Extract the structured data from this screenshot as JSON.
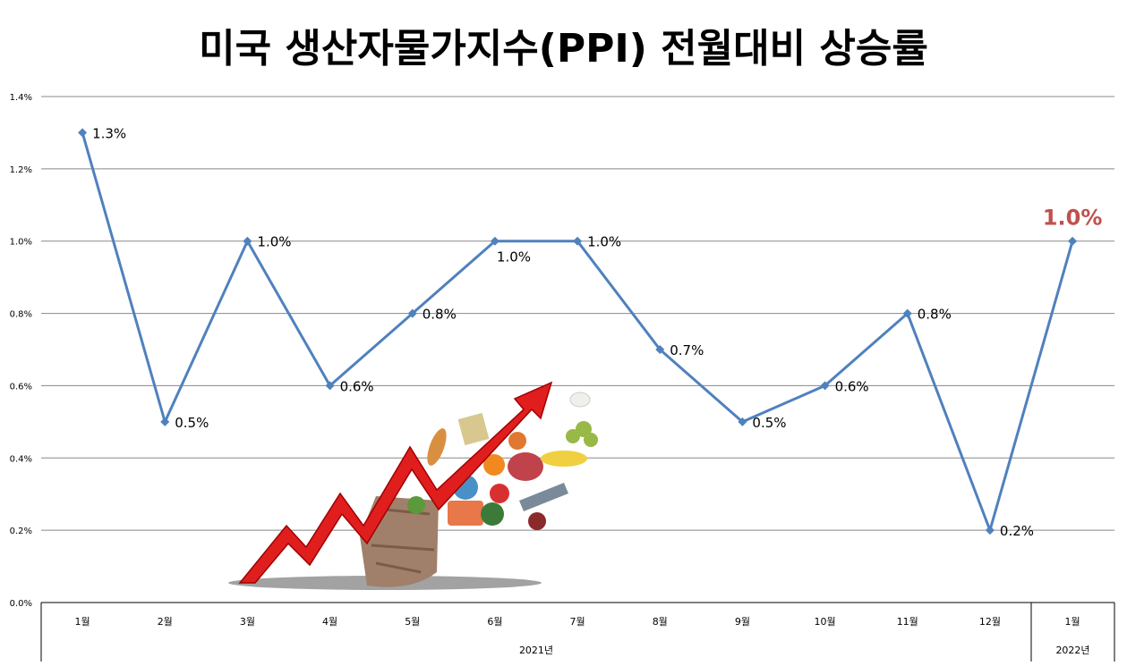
{
  "chart_data": {
    "type": "line",
    "title": "미국 생산자물가지수(PPI) 전월대비 상승률",
    "xlabel": "",
    "ylabel": "",
    "ylim": [
      0,
      1.4
    ],
    "y_ticks": [
      "0.0%",
      "0.2%",
      "0.4%",
      "0.6%",
      "0.8%",
      "1.0%",
      "1.2%",
      "1.4%"
    ],
    "y_tick_values": [
      0,
      0.2,
      0.4,
      0.6,
      0.8,
      1.0,
      1.2,
      1.4
    ],
    "grid": true,
    "legend": "none",
    "categories": [
      "1월",
      "2월",
      "3월",
      "4월",
      "5월",
      "6월",
      "7월",
      "8월",
      "9월",
      "10월",
      "11월",
      "12월",
      "1월"
    ],
    "year_groups": [
      {
        "label": "2021년",
        "start": 0,
        "end": 11
      },
      {
        "label": "2022년",
        "start": 12,
        "end": 12
      }
    ],
    "series": [
      {
        "values": [
          1.3,
          0.5,
          1.0,
          0.6,
          0.8,
          1.0,
          1.0,
          0.7,
          0.5,
          0.6,
          0.8,
          0.2,
          1.0
        ],
        "labels": [
          "1.3%",
          "0.5%",
          "1.0%",
          "0.6%",
          "0.8%",
          "1.0%",
          "1.0%",
          "0.7%",
          "0.5%",
          "0.6%",
          "0.8%",
          "0.2%",
          "1.0%"
        ],
        "color": "#4f81bd"
      }
    ],
    "highlight_color": "#c0504d",
    "highlight_index": 12
  }
}
